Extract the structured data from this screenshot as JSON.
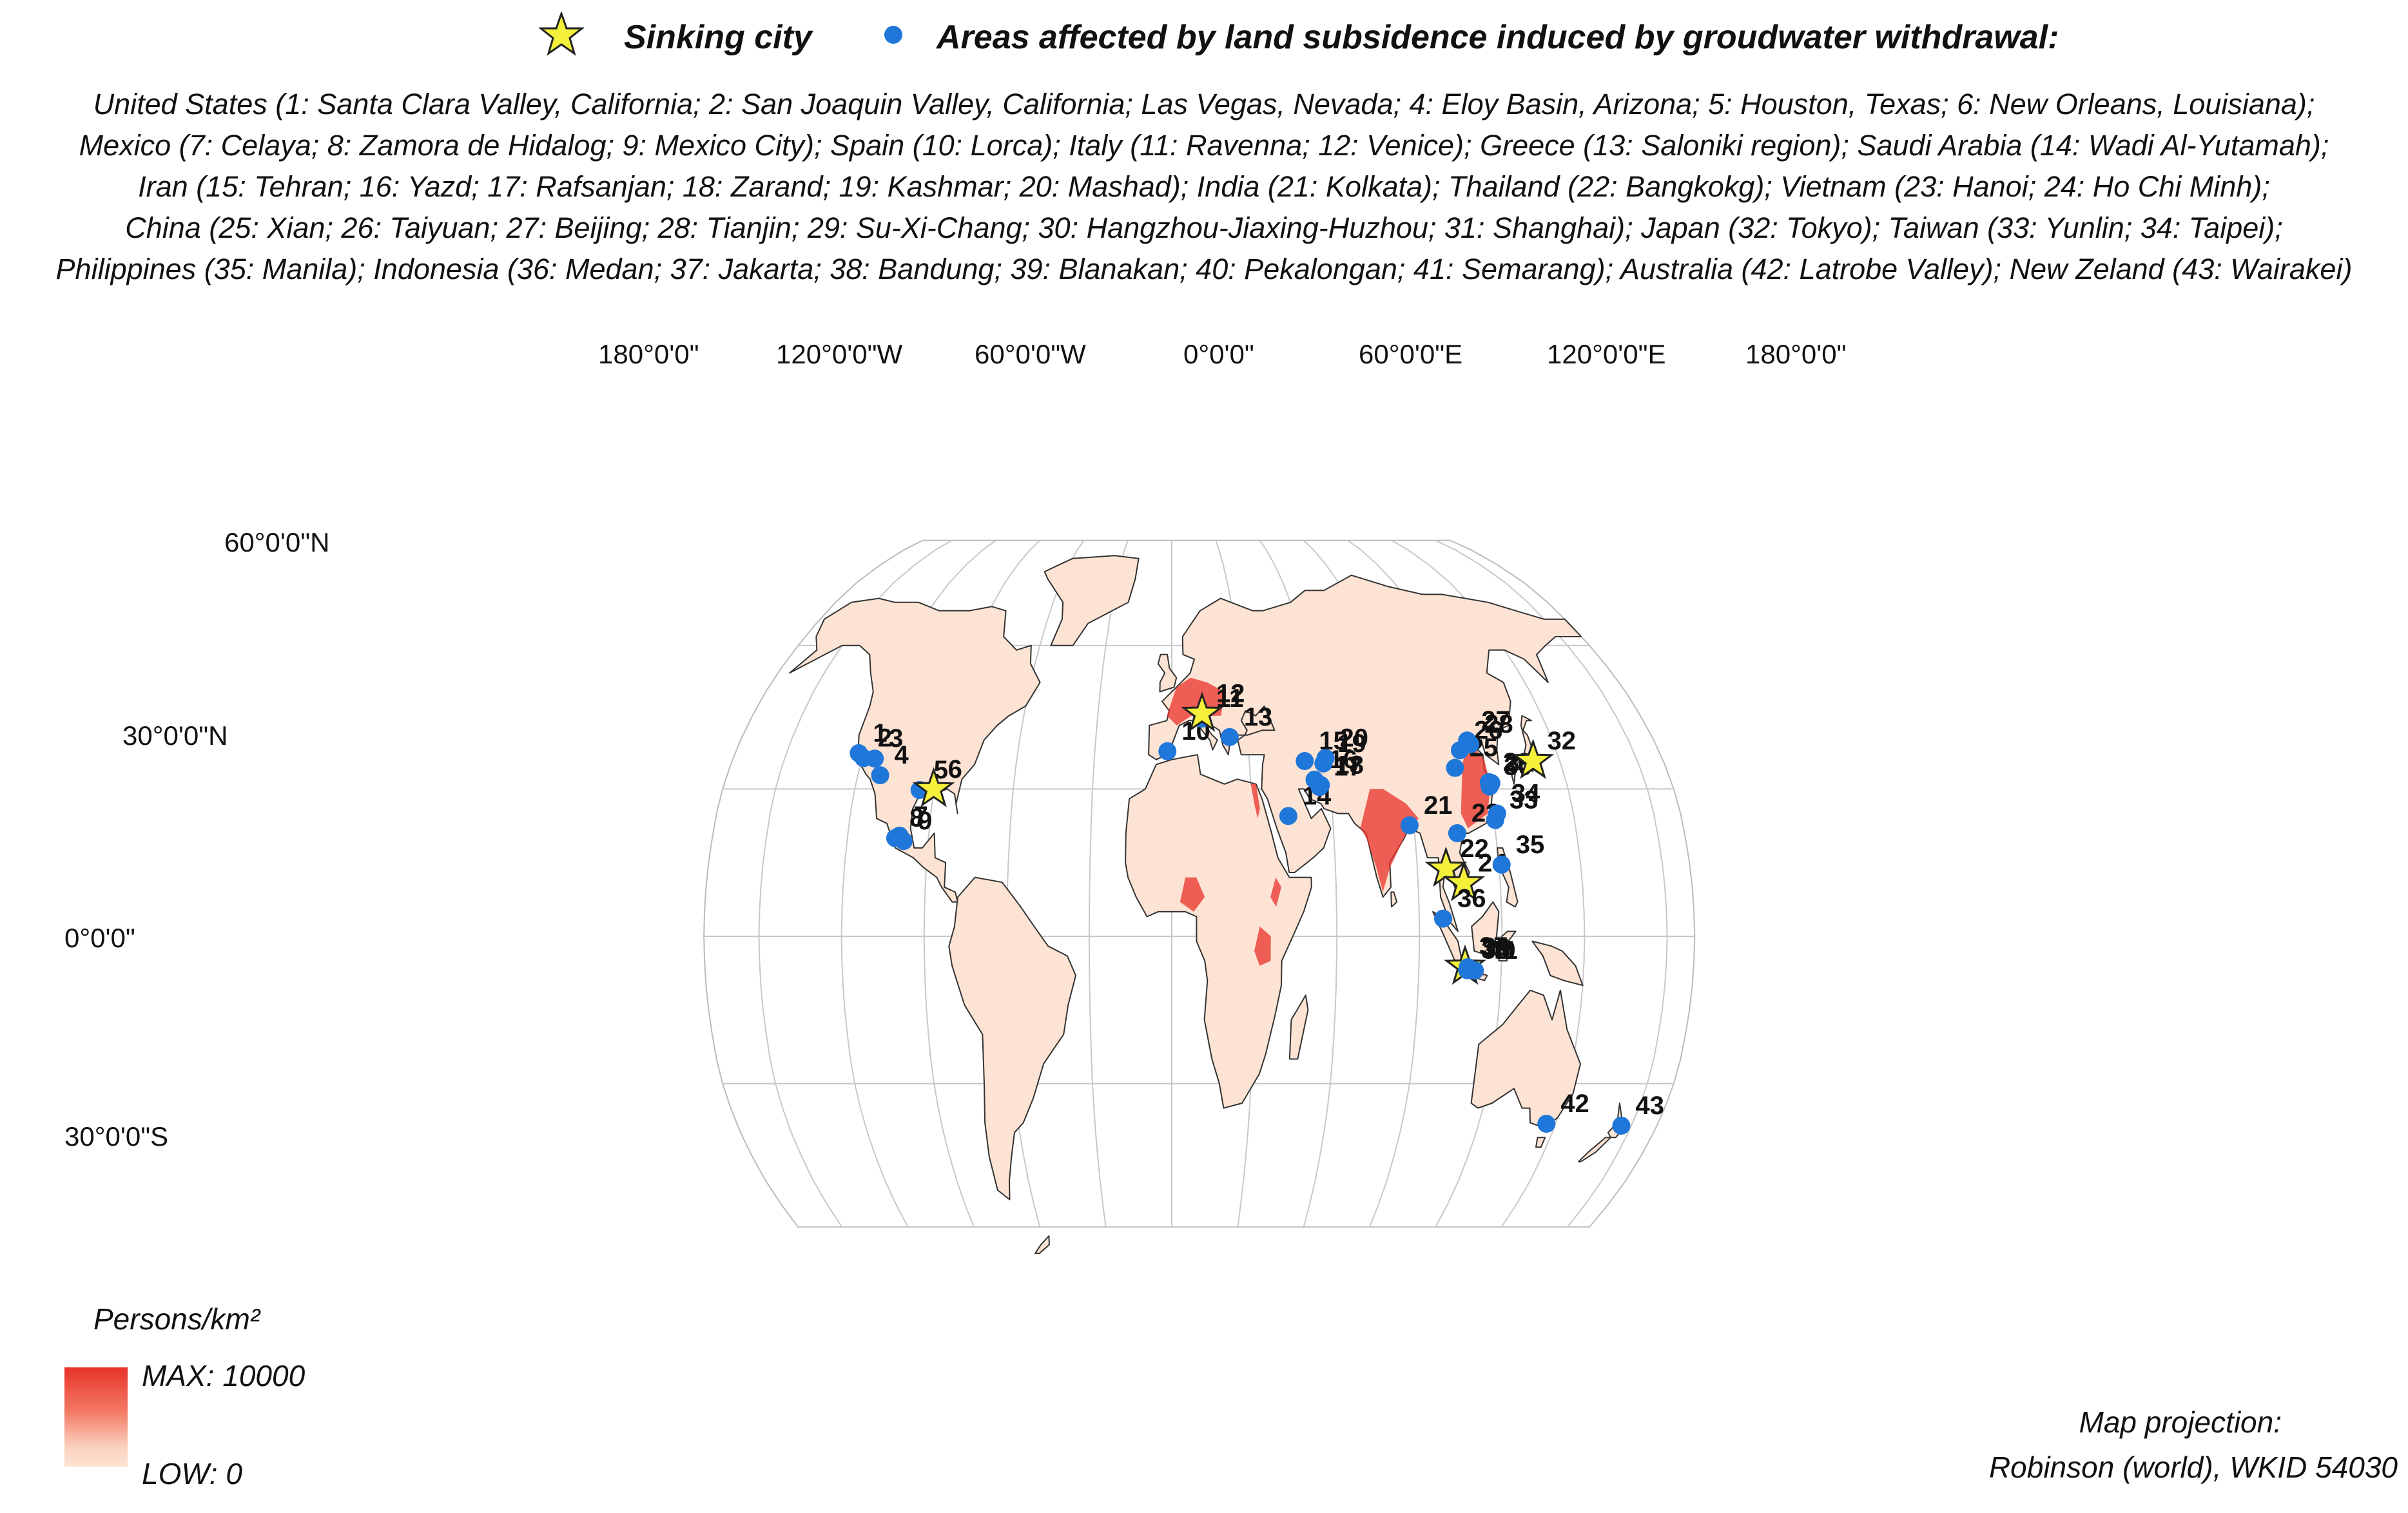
{
  "legend": {
    "star_label": "Sinking city",
    "dot_label": "Areas affected by land subsidence induced by groudwater withdrawal:"
  },
  "description_lines": [
    "United States (1: Santa Clara Valley, California; 2: San Joaquin Valley, California; Las Vegas, Nevada; 4: Eloy Basin, Arizona; 5: Houston, Texas; 6: New Orleans, Louisiana);",
    "Mexico (7: Celaya; 8: Zamora de Hidalog; 9: Mexico City); Spain (10: Lorca); Italy (11: Ravenna; 12: Venice); Greece (13: Saloniki region); Saudi Arabia (14: Wadi Al-Yutamah);",
    "Iran (15: Tehran; 16: Yazd; 17: Rafsanjan; 18: Zarand; 19: Kashmar; 20: Mashad); India (21: Kolkata); Thailand (22: Bangkokg); Vietnam (23: Hanoi; 24: Ho Chi Minh);",
    "China (25: Xian; 26: Taiyuan; 27: Beijing; 28: Tianjin; 29: Su-Xi-Chang; 30: Hangzhou-Jiaxing-Huzhou; 31: Shanghai); Japan (32: Tokyo); Taiwan (33: Yunlin; 34: Taipei);",
    "Philippines (35: Manila); Indonesia (36: Medan; 37: Jakarta; 38: Bandung; 39: Blanakan; 40: Pekalongan; 41: Semarang); Australia (42: Latrobe Valley); New Zeland (43: Wairakei)"
  ],
  "longitude_labels": [
    "180°0'0\"",
    "120°0'0\"W",
    "60°0'0\"W",
    "0°0'0\"",
    "60°0'0\"E",
    "120°0'0\"E",
    "180°0'0\""
  ],
  "latitude_labels": [
    "60°0'0\"N",
    "30°0'0\"N",
    "0°0'0\"",
    "30°0'0\"S"
  ],
  "scale": {
    "title": "Persons/km²",
    "max_label": "MAX: 10000",
    "low_label": "LOW: 0",
    "color_high": "#e8322a",
    "color_low": "#fde3d3"
  },
  "projection": {
    "line1": "Map projection:",
    "line2": "Robinson (world), WKID 54030"
  },
  "colors": {
    "land": "#fde3d3",
    "dense": "#e8322a",
    "dot": "#1f77d9",
    "star": "#f5f03a"
  },
  "sites": [
    {
      "id": "1",
      "lon": -121.9,
      "lat": 37.3,
      "type": "dot"
    },
    {
      "id": "2",
      "lon": -119.5,
      "lat": 36.3,
      "type": "dot"
    },
    {
      "id": "3",
      "lon": -115.1,
      "lat": 36.2,
      "type": "dot"
    },
    {
      "id": "4",
      "lon": -111.5,
      "lat": 32.8,
      "type": "dot"
    },
    {
      "id": "5",
      "lon": -95.4,
      "lat": 29.8,
      "type": "dot"
    },
    {
      "id": "6",
      "lon": -90.1,
      "lat": 29.95,
      "type": "star"
    },
    {
      "id": "7",
      "lon": -100.8,
      "lat": 20.5,
      "type": "dot"
    },
    {
      "id": "8",
      "lon": -102.3,
      "lat": 20.0,
      "type": "dot"
    },
    {
      "id": "9",
      "lon": -99.1,
      "lat": 19.4,
      "type": "dot"
    },
    {
      "id": "10",
      "lon": -1.7,
      "lat": 37.7,
      "type": "dot"
    },
    {
      "id": "11",
      "lon": 12.2,
      "lat": 44.4,
      "type": "dot"
    },
    {
      "id": "12",
      "lon": 12.3,
      "lat": 45.4,
      "type": "star"
    },
    {
      "id": "13",
      "lon": 22.9,
      "lat": 40.6,
      "type": "dot"
    },
    {
      "id": "14",
      "lon": 43.5,
      "lat": 24.5,
      "type": "dot"
    },
    {
      "id": "15",
      "lon": 51.4,
      "lat": 35.7,
      "type": "dot"
    },
    {
      "id": "16",
      "lon": 54.4,
      "lat": 31.9,
      "type": "dot"
    },
    {
      "id": "17",
      "lon": 56.0,
      "lat": 30.4,
      "type": "dot"
    },
    {
      "id": "18",
      "lon": 56.6,
      "lat": 30.8,
      "type": "dot"
    },
    {
      "id": "19",
      "lon": 58.5,
      "lat": 35.2,
      "type": "dot"
    },
    {
      "id": "20",
      "lon": 59.6,
      "lat": 36.3,
      "type": "dot"
    },
    {
      "id": "21",
      "lon": 88.4,
      "lat": 22.6,
      "type": "dot"
    },
    {
      "id": "22",
      "lon": 100.5,
      "lat": 13.75,
      "type": "star"
    },
    {
      "id": "23",
      "lon": 105.8,
      "lat": 21.0,
      "type": "dot"
    },
    {
      "id": "24",
      "lon": 106.7,
      "lat": 10.8,
      "type": "star"
    },
    {
      "id": "25",
      "lon": 108.9,
      "lat": 34.3,
      "type": "dot"
    },
    {
      "id": "26",
      "lon": 112.5,
      "lat": 37.9,
      "type": "dot"
    },
    {
      "id": "27",
      "lon": 116.4,
      "lat": 39.9,
      "type": "dot"
    },
    {
      "id": "28",
      "lon": 117.2,
      "lat": 39.1,
      "type": "dot"
    },
    {
      "id": "29",
      "lon": 120.6,
      "lat": 31.4,
      "type": "dot"
    },
    {
      "id": "30",
      "lon": 120.5,
      "lat": 30.5,
      "type": "dot"
    },
    {
      "id": "31",
      "lon": 121.5,
      "lat": 31.2,
      "type": "dot"
    },
    {
      "id": "32",
      "lon": 139.7,
      "lat": 35.7,
      "type": "star"
    },
    {
      "id": "33",
      "lon": 120.5,
      "lat": 23.7,
      "type": "dot"
    },
    {
      "id": "34",
      "lon": 121.5,
      "lat": 25.0,
      "type": "dot"
    },
    {
      "id": "35",
      "lon": 121.0,
      "lat": 14.6,
      "type": "dot"
    },
    {
      "id": "36",
      "lon": 98.7,
      "lat": 3.6,
      "type": "dot"
    },
    {
      "id": "37",
      "lon": 106.8,
      "lat": -6.2,
      "type": "star"
    },
    {
      "id": "38",
      "lon": 107.6,
      "lat": -6.9,
      "type": "dot"
    },
    {
      "id": "39",
      "lon": 107.8,
      "lat": -6.3,
      "type": "dot"
    },
    {
      "id": "40",
      "lon": 109.7,
      "lat": -6.9,
      "type": "dot"
    },
    {
      "id": "41",
      "lon": 110.4,
      "lat": -6.97,
      "type": "dot"
    },
    {
      "id": "42",
      "lon": 146.5,
      "lat": -38.2,
      "type": "dot"
    },
    {
      "id": "43",
      "lon": 176.1,
      "lat": -38.6,
      "type": "dot"
    }
  ]
}
